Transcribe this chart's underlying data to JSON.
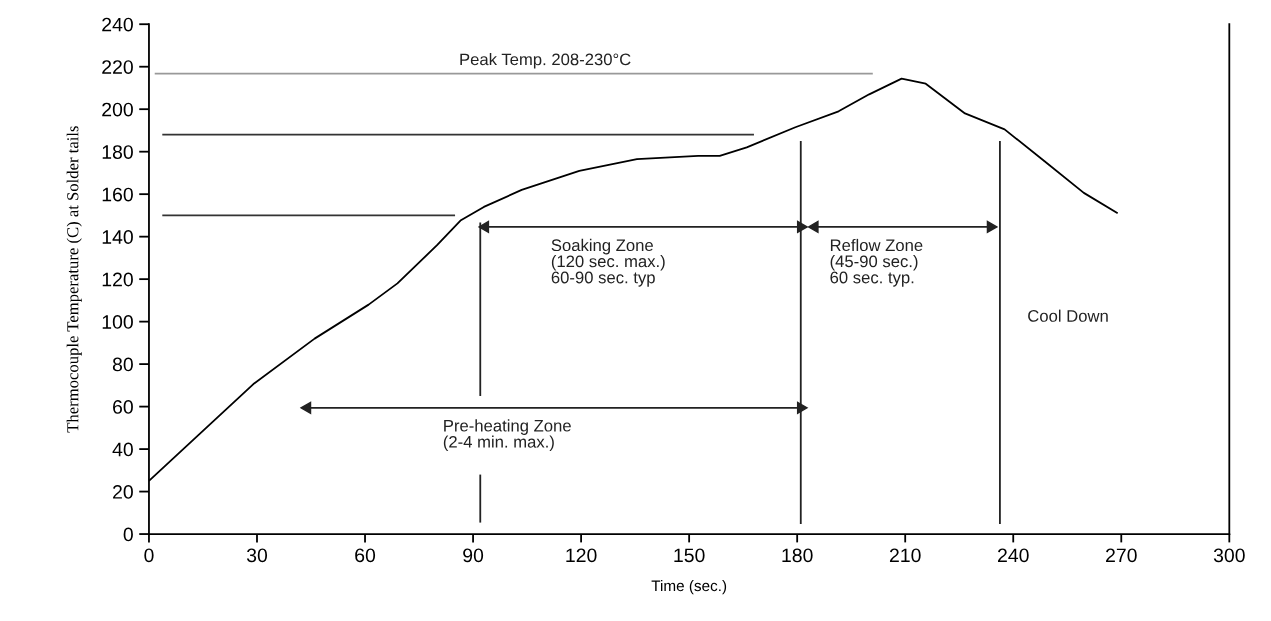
{
  "chart_data": {
    "type": "line",
    "xlabel": "Time (sec.)",
    "ylabel": "Thermocouple Temperature (C) at Solder tails",
    "xlim": [
      0,
      300
    ],
    "ylim": [
      0,
      240
    ],
    "xticks": [
      0,
      30,
      60,
      90,
      120,
      150,
      180,
      210,
      240,
      270,
      300
    ],
    "yticks": [
      0,
      20,
      40,
      60,
      80,
      100,
      120,
      140,
      160,
      180,
      200,
      220,
      240
    ],
    "grid": false,
    "legend": false,
    "series": [
      {
        "color": "#000000",
        "x": [
          0,
          29,
          46,
          61,
          69,
          80,
          86.5,
          93,
          103.5,
          119.5,
          135.5,
          152.5,
          158.5,
          166,
          179.5,
          191.5,
          200,
          209,
          215.7,
          226.6,
          237.6,
          248.7,
          259.6,
          269
        ],
        "values": [
          25,
          70.6,
          92,
          108,
          118,
          136,
          147.6,
          154,
          162,
          171,
          176.5,
          178,
          178,
          182,
          191.5,
          199,
          207,
          214.4,
          212,
          198,
          190.5,
          175.5,
          160.6,
          151
        ]
      },
      {
        "color": "#999999",
        "x": [
          1.6,
          201
        ],
        "values": [
          216.7,
          216.7
        ]
      },
      {
        "color": "#333333",
        "x": [
          3.7,
          168
        ],
        "values": [
          188,
          188
        ]
      },
      {
        "color": "#333333",
        "x": [
          3.7,
          85
        ],
        "values": [
          150,
          150
        ]
      },
      {
        "color": "#222222",
        "x": [
          92,
          92
        ],
        "values": [
          146.7,
          65
        ]
      },
      {
        "color": "#222222",
        "x": [
          92,
          92
        ],
        "values": [
          28,
          5.4
        ]
      },
      {
        "color": "#222222",
        "x": [
          181,
          181
        ],
        "values": [
          185,
          4.7
        ]
      },
      {
        "color": "#222222",
        "x": [
          236.3,
          236.3
        ],
        "values": [
          185,
          4.7
        ]
      },
      {
        "color": "#222222",
        "x": [
          93.4,
          181
        ],
        "values": [
          144.6,
          144.6
        ],
        "marker": "triangle"
      },
      {
        "color": "#222222",
        "x": [
          184.9,
          233.7
        ],
        "values": [
          144.6,
          144.6
        ],
        "marker": "triangle"
      },
      {
        "color": "#222222",
        "x": [
          44,
          181
        ],
        "values": [
          59.4,
          59.4
        ],
        "marker": "triangle"
      }
    ],
    "annotations": [
      "Peak Temp. 208-230°C",
      "Soaking Zone\n(120 sec. max.)\n60-90 sec. typ",
      "Reflow Zone\n(45-90 sec.)\n60 sec. typ.",
      "Cool Down",
      "Pre-heating Zone\n(2-4 min. max.)"
    ]
  }
}
